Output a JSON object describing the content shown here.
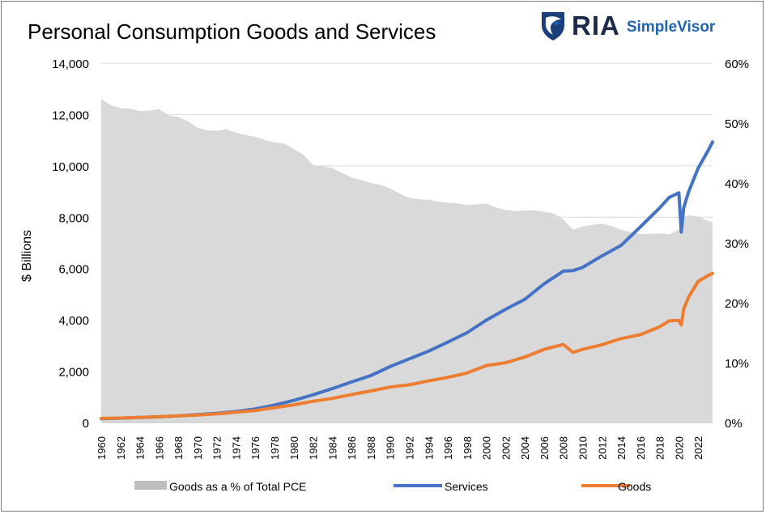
{
  "chart_data": {
    "type": "line",
    "title": "Personal Consumption Goods and Services",
    "ylabel": "$ Billions",
    "y2label": "",
    "ylim": [
      0,
      14000
    ],
    "y2lim": [
      0,
      0.6
    ],
    "xlim": [
      1960,
      2023.5
    ],
    "yticks": [
      "0",
      "2,000",
      "4,000",
      "6,000",
      "8,000",
      "10,000",
      "12,000",
      "14,000"
    ],
    "y2ticks": [
      "0%",
      "10%",
      "20%",
      "30%",
      "40%",
      "50%",
      "60%"
    ],
    "xticks": [
      "1960",
      "1962",
      "1964",
      "1966",
      "1968",
      "1970",
      "1972",
      "1974",
      "1976",
      "1978",
      "1980",
      "1982",
      "1984",
      "1986",
      "1988",
      "1990",
      "1992",
      "1994",
      "1996",
      "1998",
      "2000",
      "2002",
      "2004",
      "2006",
      "2008",
      "2010",
      "2012",
      "2014",
      "2016",
      "2018",
      "2020",
      "2022"
    ],
    "grid": true,
    "legend": "bottom",
    "series": [
      {
        "name": "Goods as a % of Total PCE",
        "type": "area",
        "axis": "right",
        "color": "#d9d9d9",
        "points": [
          [
            1960,
            0.54
          ],
          [
            1961,
            0.53
          ],
          [
            1962,
            0.525
          ],
          [
            1963,
            0.524
          ],
          [
            1964,
            0.52
          ],
          [
            1965,
            0.521
          ],
          [
            1966,
            0.523
          ],
          [
            1967,
            0.513
          ],
          [
            1968,
            0.51
          ],
          [
            1969,
            0.503
          ],
          [
            1970,
            0.492
          ],
          [
            1971,
            0.488
          ],
          [
            1972,
            0.487
          ],
          [
            1973,
            0.49
          ],
          [
            1974,
            0.484
          ],
          [
            1975,
            0.48
          ],
          [
            1976,
            0.477
          ],
          [
            1977,
            0.472
          ],
          [
            1978,
            0.468
          ],
          [
            1979,
            0.466
          ],
          [
            1980,
            0.457
          ],
          [
            1981,
            0.447
          ],
          [
            1982,
            0.43
          ],
          [
            1983,
            0.428
          ],
          [
            1984,
            0.425
          ],
          [
            1985,
            0.417
          ],
          [
            1986,
            0.409
          ],
          [
            1987,
            0.405
          ],
          [
            1988,
            0.4
          ],
          [
            1989,
            0.397
          ],
          [
            1990,
            0.391
          ],
          [
            1991,
            0.382
          ],
          [
            1992,
            0.375
          ],
          [
            1993,
            0.373
          ],
          [
            1994,
            0.372
          ],
          [
            1995,
            0.369
          ],
          [
            1996,
            0.367
          ],
          [
            1997,
            0.366
          ],
          [
            1998,
            0.363
          ],
          [
            1999,
            0.364
          ],
          [
            2000,
            0.366
          ],
          [
            2001,
            0.359
          ],
          [
            2002,
            0.355
          ],
          [
            2003,
            0.353
          ],
          [
            2004,
            0.354
          ],
          [
            2005,
            0.354
          ],
          [
            2006,
            0.352
          ],
          [
            2007,
            0.349
          ],
          [
            2008,
            0.339
          ],
          [
            2009,
            0.322
          ],
          [
            2010,
            0.327
          ],
          [
            2011,
            0.33
          ],
          [
            2012,
            0.332
          ],
          [
            2013,
            0.328
          ],
          [
            2014,
            0.322
          ],
          [
            2015,
            0.318
          ],
          [
            2016,
            0.315
          ],
          [
            2017,
            0.315
          ],
          [
            2018,
            0.316
          ],
          [
            2019,
            0.314
          ],
          [
            2020,
            0.322
          ],
          [
            2020.5,
            0.342
          ],
          [
            2021,
            0.346
          ],
          [
            2022,
            0.344
          ],
          [
            2023,
            0.337
          ],
          [
            2023.5,
            0.335
          ]
        ]
      },
      {
        "name": "Services",
        "type": "line",
        "axis": "left",
        "color": "#4472c4",
        "points": [
          [
            1960,
            150
          ],
          [
            1962,
            170
          ],
          [
            1964,
            195
          ],
          [
            1966,
            225
          ],
          [
            1968,
            260
          ],
          [
            1970,
            310
          ],
          [
            1972,
            360
          ],
          [
            1974,
            430
          ],
          [
            1976,
            530
          ],
          [
            1978,
            680
          ],
          [
            1980,
            860
          ],
          [
            1982,
            1080
          ],
          [
            1984,
            1320
          ],
          [
            1986,
            1580
          ],
          [
            1988,
            1830
          ],
          [
            1990,
            2180
          ],
          [
            1992,
            2480
          ],
          [
            1994,
            2780
          ],
          [
            1996,
            3130
          ],
          [
            1998,
            3500
          ],
          [
            2000,
            3990
          ],
          [
            2002,
            4410
          ],
          [
            2004,
            4800
          ],
          [
            2006,
            5400
          ],
          [
            2008,
            5900
          ],
          [
            2009,
            5920
          ],
          [
            2010,
            6040
          ],
          [
            2012,
            6490
          ],
          [
            2014,
            6900
          ],
          [
            2016,
            7620
          ],
          [
            2018,
            8360
          ],
          [
            2019,
            8770
          ],
          [
            2020,
            8950
          ],
          [
            2020.25,
            7420
          ],
          [
            2020.5,
            8350
          ],
          [
            2021,
            8980
          ],
          [
            2022,
            9910
          ],
          [
            2023,
            10570
          ],
          [
            2023.5,
            10930
          ]
        ]
      },
      {
        "name": "Goods",
        "type": "line",
        "axis": "left",
        "color": "#ed7d31",
        "points": [
          [
            1960,
            160
          ],
          [
            1962,
            175
          ],
          [
            1964,
            200
          ],
          [
            1966,
            225
          ],
          [
            1968,
            260
          ],
          [
            1970,
            290
          ],
          [
            1972,
            340
          ],
          [
            1974,
            400
          ],
          [
            1976,
            470
          ],
          [
            1978,
            580
          ],
          [
            1980,
            690
          ],
          [
            1982,
            830
          ],
          [
            1984,
            940
          ],
          [
            1986,
            1090
          ],
          [
            1988,
            1230
          ],
          [
            1990,
            1380
          ],
          [
            1992,
            1470
          ],
          [
            1994,
            1620
          ],
          [
            1996,
            1760
          ],
          [
            1998,
            1930
          ],
          [
            2000,
            2220
          ],
          [
            2002,
            2330
          ],
          [
            2004,
            2550
          ],
          [
            2006,
            2850
          ],
          [
            2008,
            3040
          ],
          [
            2009,
            2730
          ],
          [
            2010,
            2850
          ],
          [
            2012,
            3030
          ],
          [
            2014,
            3270
          ],
          [
            2016,
            3420
          ],
          [
            2018,
            3730
          ],
          [
            2019,
            3960
          ],
          [
            2020,
            3980
          ],
          [
            2020.25,
            3800
          ],
          [
            2020.5,
            4420
          ],
          [
            2021,
            4880
          ],
          [
            2022,
            5500
          ],
          [
            2023,
            5720
          ],
          [
            2023.5,
            5810
          ]
        ]
      }
    ]
  },
  "logo": {
    "brand": "RIA",
    "product": "SimpleVisor"
  }
}
